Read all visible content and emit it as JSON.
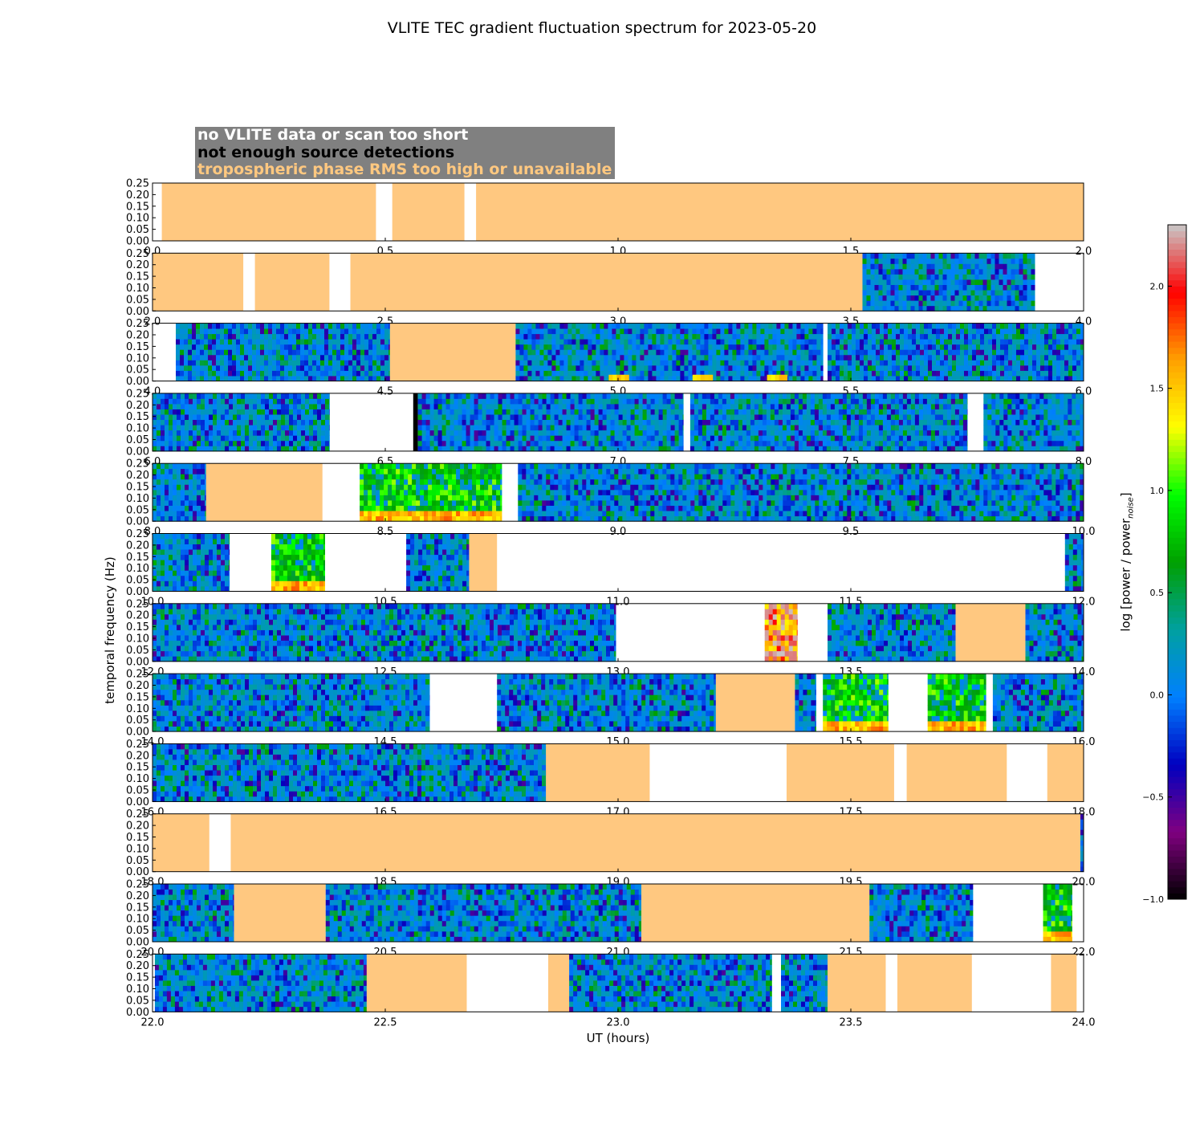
{
  "title": "VLITE TEC gradient fluctuation spectrum for 2023-05-20",
  "legend": {
    "no_data": "no VLITE data or scan too short",
    "no_detections": "not enough source detections",
    "tropo": "tropospheric phase RMS too high or unavailable"
  },
  "colors": {
    "tropo": "#ffc880",
    "no_detections": "#000000",
    "legend_background": "#808080",
    "colormap": [
      "#000000",
      "#800080",
      "#0000c0",
      "#0080ff",
      "#00a0a0",
      "#00a000",
      "#00ff00",
      "#ffff00",
      "#ffa000",
      "#ff0000",
      "#c8c8c8"
    ]
  },
  "chart_data": {
    "type": "heatmap",
    "xlabel": "UT (hours)",
    "ylabel": "temporal frequency (Hz)",
    "colorbar": {
      "label": "log [power / power",
      "label_subscript": "noise",
      "label_close": "]",
      "range": [
        -1.0,
        2.3
      ],
      "ticks": [
        "2.0",
        "1.5",
        "1.0",
        "0.5",
        "0.0",
        "−0.5",
        "−1.0"
      ],
      "tick_values": [
        2.0,
        1.5,
        1.0,
        0.5,
        0.0,
        -0.5,
        -1.0
      ]
    },
    "ylim": [
      0,
      0.25
    ],
    "yticks": [
      "0.00",
      "0.05",
      "0.10",
      "0.15",
      "0.20",
      "0.25"
    ],
    "panels": [
      {
        "xlim": [
          0,
          2
        ],
        "xticks": [
          "0.0",
          "0.5",
          "1.0",
          "1.5",
          "2.0"
        ],
        "segments": [
          [
            0.02,
            0.48,
            "tropo"
          ],
          [
            0.48,
            0.515,
            "none"
          ],
          [
            0.515,
            0.67,
            "tropo"
          ],
          [
            0.67,
            0.695,
            "none"
          ],
          [
            0.695,
            2.0,
            "tropo"
          ]
        ]
      },
      {
        "xlim": [
          2,
          4
        ],
        "xticks": [
          "2.0",
          "2.5",
          "3.0",
          "3.5",
          "4.0"
        ],
        "segments": [
          [
            2.0,
            2.195,
            "tropo"
          ],
          [
            2.195,
            2.22,
            "none"
          ],
          [
            2.22,
            2.38,
            "tropo"
          ],
          [
            2.38,
            2.425,
            "none"
          ],
          [
            2.425,
            3.525,
            "tropo"
          ],
          [
            3.525,
            3.895,
            "data"
          ],
          [
            3.895,
            4.0,
            "none"
          ]
        ]
      },
      {
        "xlim": [
          4,
          6
        ],
        "xticks": [
          "4.0",
          "4.5",
          "5.0",
          "5.5",
          "6.0"
        ],
        "segments": [
          [
            4.0,
            4.05,
            "none"
          ],
          [
            4.05,
            4.51,
            "data"
          ],
          [
            4.51,
            4.78,
            "tropo"
          ],
          [
            4.78,
            5.44,
            "data"
          ],
          [
            5.44,
            5.45,
            "none"
          ],
          [
            5.45,
            6.0,
            "data"
          ]
        ],
        "hotspots": [
          [
            4.98,
            5.02,
            0.8
          ],
          [
            5.16,
            5.2,
            0.9
          ],
          [
            5.32,
            5.36,
            0.7
          ]
        ]
      },
      {
        "xlim": [
          6,
          8
        ],
        "xticks": [
          "6.0",
          "6.5",
          "7.0",
          "7.5",
          "8.0"
        ],
        "segments": [
          [
            6.0,
            6.38,
            "data"
          ],
          [
            6.38,
            6.56,
            "none"
          ],
          [
            6.56,
            6.57,
            "nodet"
          ],
          [
            6.57,
            7.14,
            "data"
          ],
          [
            7.14,
            7.155,
            "none"
          ],
          [
            7.155,
            7.75,
            "data"
          ],
          [
            7.75,
            7.785,
            "none"
          ],
          [
            7.785,
            8.0,
            "data"
          ]
        ]
      },
      {
        "xlim": [
          8,
          10
        ],
        "xticks": [
          "8.0",
          "8.5",
          "9.0",
          "9.5",
          "10.0"
        ],
        "segments": [
          [
            8.0,
            8.115,
            "data"
          ],
          [
            8.115,
            8.365,
            "tropo"
          ],
          [
            8.365,
            8.445,
            "none"
          ],
          [
            8.445,
            8.75,
            "hot"
          ],
          [
            8.75,
            8.785,
            "none"
          ],
          [
            8.785,
            10.0,
            "data"
          ]
        ]
      },
      {
        "xlim": [
          10,
          12
        ],
        "xticks": [
          "10.0",
          "10.5",
          "11.0",
          "11.5",
          "12.0"
        ],
        "segments": [
          [
            10.0,
            10.165,
            "data"
          ],
          [
            10.165,
            10.255,
            "none"
          ],
          [
            10.255,
            10.37,
            "hot"
          ],
          [
            10.37,
            10.545,
            "none"
          ],
          [
            10.545,
            10.68,
            "data"
          ],
          [
            10.68,
            10.74,
            "tropo"
          ],
          [
            10.74,
            11.96,
            "none"
          ],
          [
            11.96,
            12.0,
            "data"
          ]
        ]
      },
      {
        "xlim": [
          12,
          14
        ],
        "xticks": [
          "12.0",
          "12.5",
          "13.0",
          "13.5",
          "14.0"
        ],
        "segments": [
          [
            12.0,
            12.995,
            "data"
          ],
          [
            12.995,
            13.315,
            "none"
          ],
          [
            13.315,
            13.385,
            "veryhot"
          ],
          [
            13.385,
            13.45,
            "none"
          ],
          [
            13.45,
            13.725,
            "data"
          ],
          [
            13.725,
            13.875,
            "tropo"
          ],
          [
            13.875,
            14.0,
            "data"
          ]
        ]
      },
      {
        "xlim": [
          14,
          16
        ],
        "xticks": [
          "14.0",
          "14.5",
          "15.0",
          "15.5",
          "16.0"
        ],
        "segments": [
          [
            14.0,
            14.595,
            "data"
          ],
          [
            14.595,
            14.74,
            "none"
          ],
          [
            14.74,
            15.21,
            "data"
          ],
          [
            15.21,
            15.38,
            "tropo"
          ],
          [
            15.38,
            15.425,
            "data"
          ],
          [
            15.425,
            15.44,
            "none"
          ],
          [
            15.44,
            15.58,
            "hot"
          ],
          [
            15.58,
            15.665,
            "none"
          ],
          [
            15.665,
            15.79,
            "hot"
          ],
          [
            15.79,
            15.805,
            "none"
          ],
          [
            15.805,
            16.0,
            "data"
          ]
        ]
      },
      {
        "xlim": [
          16,
          18
        ],
        "xticks": [
          "16.0",
          "16.5",
          "17.0",
          "17.5",
          "18.0"
        ],
        "segments": [
          [
            16.0,
            16.845,
            "data"
          ],
          [
            16.845,
            17.068,
            "tropo"
          ],
          [
            17.068,
            17.362,
            "none"
          ],
          [
            17.362,
            17.593,
            "tropo"
          ],
          [
            17.593,
            17.62,
            "none"
          ],
          [
            17.62,
            17.835,
            "tropo"
          ],
          [
            17.835,
            17.922,
            "none"
          ],
          [
            17.922,
            18.0,
            "tropo"
          ]
        ]
      },
      {
        "xlim": [
          18,
          20
        ],
        "xticks": [
          "18.0",
          "18.5",
          "19.0",
          "19.5",
          "20.0"
        ],
        "segments": [
          [
            18.0,
            18.122,
            "tropo"
          ],
          [
            18.122,
            18.168,
            "none"
          ],
          [
            18.168,
            19.993,
            "tropo"
          ],
          [
            19.993,
            20.0,
            "data"
          ]
        ]
      },
      {
        "xlim": [
          20,
          22
        ],
        "xticks": [
          "20.0",
          "20.5",
          "21.0",
          "21.5",
          "22.0"
        ],
        "segments": [
          [
            20.0,
            20.175,
            "data"
          ],
          [
            20.175,
            20.372,
            "tropo"
          ],
          [
            20.372,
            21.05,
            "data"
          ],
          [
            21.05,
            21.54,
            "tropo"
          ],
          [
            21.54,
            21.762,
            "data"
          ],
          [
            21.762,
            21.913,
            "none"
          ],
          [
            21.913,
            21.975,
            "hot"
          ],
          [
            21.975,
            22.0,
            "none"
          ]
        ]
      },
      {
        "xlim": [
          22,
          24
        ],
        "xticks": [
          "22.0",
          "22.5",
          "23.0",
          "23.5",
          "24.0"
        ],
        "segments": [
          [
            22.0,
            22.005,
            "none"
          ],
          [
            22.005,
            22.46,
            "data"
          ],
          [
            22.46,
            22.675,
            "tropo"
          ],
          [
            22.675,
            22.85,
            "none"
          ],
          [
            22.85,
            22.895,
            "tropo"
          ],
          [
            22.895,
            23.33,
            "data"
          ],
          [
            23.33,
            23.35,
            "none"
          ],
          [
            23.35,
            23.45,
            "data"
          ],
          [
            23.45,
            23.575,
            "tropo"
          ],
          [
            23.575,
            23.6,
            "none"
          ],
          [
            23.6,
            23.76,
            "tropo"
          ],
          [
            23.76,
            23.93,
            "none"
          ],
          [
            23.93,
            23.985,
            "tropo"
          ],
          [
            23.985,
            24.0,
            "none"
          ]
        ]
      }
    ]
  }
}
